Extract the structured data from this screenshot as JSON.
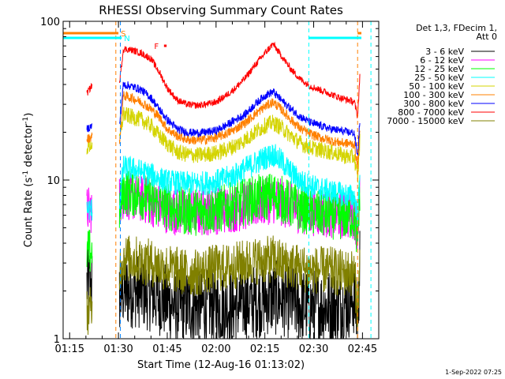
{
  "chart_data": {
    "type": "line",
    "title": "RHESSI Observing Summary Count Rates",
    "xlabel": "Start Time (12-Aug-16 01:13:02)",
    "ylabel": "Count Rate (s",
    "ylabel_sup": "-1",
    "ylabel_tail": " detector",
    "ylabel_sup2": "-1",
    "ylabel_close": ")",
    "yscale": "log",
    "xlim_min": [
      73,
      170
    ],
    "ylim": [
      1,
      100
    ],
    "x_ticks": [
      {
        "min": 75,
        "label": "01:15"
      },
      {
        "min": 90,
        "label": "01:30"
      },
      {
        "min": 105,
        "label": "01:45"
      },
      {
        "min": 120,
        "label": "02:00"
      },
      {
        "min": 135,
        "label": "02:15"
      },
      {
        "min": 150,
        "label": "02:30"
      },
      {
        "min": 165,
        "label": "02:45"
      }
    ],
    "y_ticks": [
      {
        "value": 1,
        "label": "1"
      },
      {
        "value": 10,
        "label": "10"
      },
      {
        "value": 100,
        "label": "100"
      }
    ],
    "legend_header": [
      "Det 1,3, FDecim 1,",
      "Att 0"
    ],
    "legend_position": "right",
    "date_stamp": "1-Sep-2022 07:25",
    "flags": [
      {
        "label": "S",
        "color": "#ff8000",
        "start": 73,
        "end": 90
      },
      {
        "label": "N",
        "color": "#00ffff",
        "start": 73,
        "end": 91
      },
      {
        "label": "F",
        "color": "#ff0000",
        "start": 104,
        "end": 104.8
      }
    ],
    "vlines": [
      {
        "min": 89.2,
        "color": "#ff8000"
      },
      {
        "min": 90.6,
        "color": "#0080ff"
      },
      {
        "min": 148.5,
        "color": "#00ffff"
      },
      {
        "min": 163.5,
        "color": "#ff8000"
      },
      {
        "min": 167.6,
        "color": "#00ffff"
      }
    ],
    "knots_x": [
      80.3,
      82.0,
      90.3,
      91.5,
      94,
      97,
      100,
      102.5,
      105,
      108,
      111,
      114,
      117,
      120,
      123,
      126,
      129,
      132,
      135,
      137.5,
      140,
      143,
      146,
      149,
      152,
      155,
      158,
      160.5,
      162.5,
      163.5,
      164.2
    ],
    "series": [
      {
        "name": "3 - 6 keV",
        "color": "#000000",
        "values": [
          2.2,
          2.2,
          1.8,
          2.0,
          2.0,
          2.0,
          1.9,
          1.8,
          1.7,
          1.6,
          1.6,
          1.6,
          1.6,
          1.6,
          1.6,
          1.6,
          1.7,
          1.7,
          1.8,
          1.8,
          1.8,
          1.7,
          1.6,
          1.6,
          1.6,
          1.6,
          1.6,
          1.7,
          1.8,
          1.3,
          3.0
        ]
      },
      {
        "name": "6 - 12 keV",
        "color": "#ff00ff",
        "values": [
          6.5,
          6.5,
          7.5,
          8.0,
          7.8,
          7.6,
          7.2,
          6.8,
          6.5,
          6.3,
          6.2,
          6.2,
          6.3,
          6.4,
          6.5,
          6.6,
          6.8,
          7.0,
          7.3,
          7.5,
          7.2,
          6.8,
          6.5,
          6.3,
          6.2,
          6.1,
          6.0,
          6.0,
          6.0,
          5.0,
          8.0
        ]
      },
      {
        "name": "12 - 25 keV",
        "color": "#00ff00",
        "values": [
          3.5,
          3.5,
          6.5,
          8.5,
          8.3,
          8.0,
          7.5,
          7.0,
          6.8,
          6.5,
          6.3,
          6.3,
          6.4,
          6.5,
          6.7,
          7.0,
          7.3,
          7.6,
          7.8,
          8.0,
          7.6,
          7.0,
          6.6,
          6.3,
          6.1,
          6.0,
          5.9,
          5.9,
          5.9,
          4.0,
          9.0
        ]
      },
      {
        "name": "25 - 50 keV",
        "color": "#00ffff",
        "values": [
          6.5,
          6.5,
          7.0,
          12.0,
          11.8,
          11.3,
          10.8,
          10.2,
          9.8,
          9.6,
          9.5,
          9.5,
          9.6,
          9.8,
          10.2,
          10.8,
          11.8,
          12.8,
          13.8,
          14.5,
          13.2,
          11.2,
          9.8,
          9.2,
          8.8,
          8.5,
          8.2,
          8.0,
          7.8,
          6.0,
          10.0
        ]
      },
      {
        "name": "50 - 100 keV",
        "color": "#d4d400",
        "values": [
          16,
          17,
          17,
          26,
          25,
          24,
          22,
          19,
          17,
          15,
          14.5,
          14.3,
          14.5,
          14.8,
          15.5,
          16.5,
          18,
          20,
          22,
          23,
          21.5,
          19,
          17,
          16,
          15.5,
          15,
          14.5,
          14,
          14,
          10,
          18
        ]
      },
      {
        "name": "100 - 300 keV",
        "color": "#ff8000",
        "values": [
          18,
          19,
          17,
          34,
          33,
          31,
          28,
          25,
          21,
          19,
          18,
          17.8,
          18,
          18.5,
          19.5,
          21,
          23,
          26,
          29,
          31,
          28,
          24,
          21,
          19.5,
          18.5,
          17.8,
          17.2,
          17,
          16.8,
          12,
          20
        ]
      },
      {
        "name": "300 - 800 keV",
        "color": "#0000ff",
        "values": [
          21,
          22,
          22,
          40,
          39,
          37,
          33,
          28,
          24,
          21,
          20,
          19.8,
          20,
          20.5,
          22,
          24,
          26,
          30,
          34,
          36,
          32,
          28,
          25,
          23,
          22,
          21,
          20.5,
          20,
          19.8,
          14,
          24
        ]
      },
      {
        "name": "800 - 7000 keV",
        "color": "#ff0000",
        "values": [
          35,
          40,
          40,
          67,
          66,
          63,
          58,
          48,
          38,
          32,
          30,
          29.5,
          30,
          31,
          34,
          38,
          44,
          53,
          63,
          72,
          61,
          50,
          43,
          39,
          37,
          35,
          33,
          32,
          31,
          25,
          45
        ]
      },
      {
        "name": "7000 - 15000 keV",
        "color": "#808000",
        "values": [
          1.5,
          1.5,
          2.8,
          3.2,
          3.2,
          3.1,
          3.0,
          2.9,
          2.8,
          2.7,
          2.6,
          2.6,
          2.7,
          2.8,
          2.8,
          2.9,
          3.0,
          3.1,
          3.1,
          3.2,
          3.0,
          2.9,
          2.8,
          2.7,
          2.7,
          2.7,
          2.6,
          2.6,
          2.6,
          1.5,
          3.0
        ]
      }
    ]
  }
}
